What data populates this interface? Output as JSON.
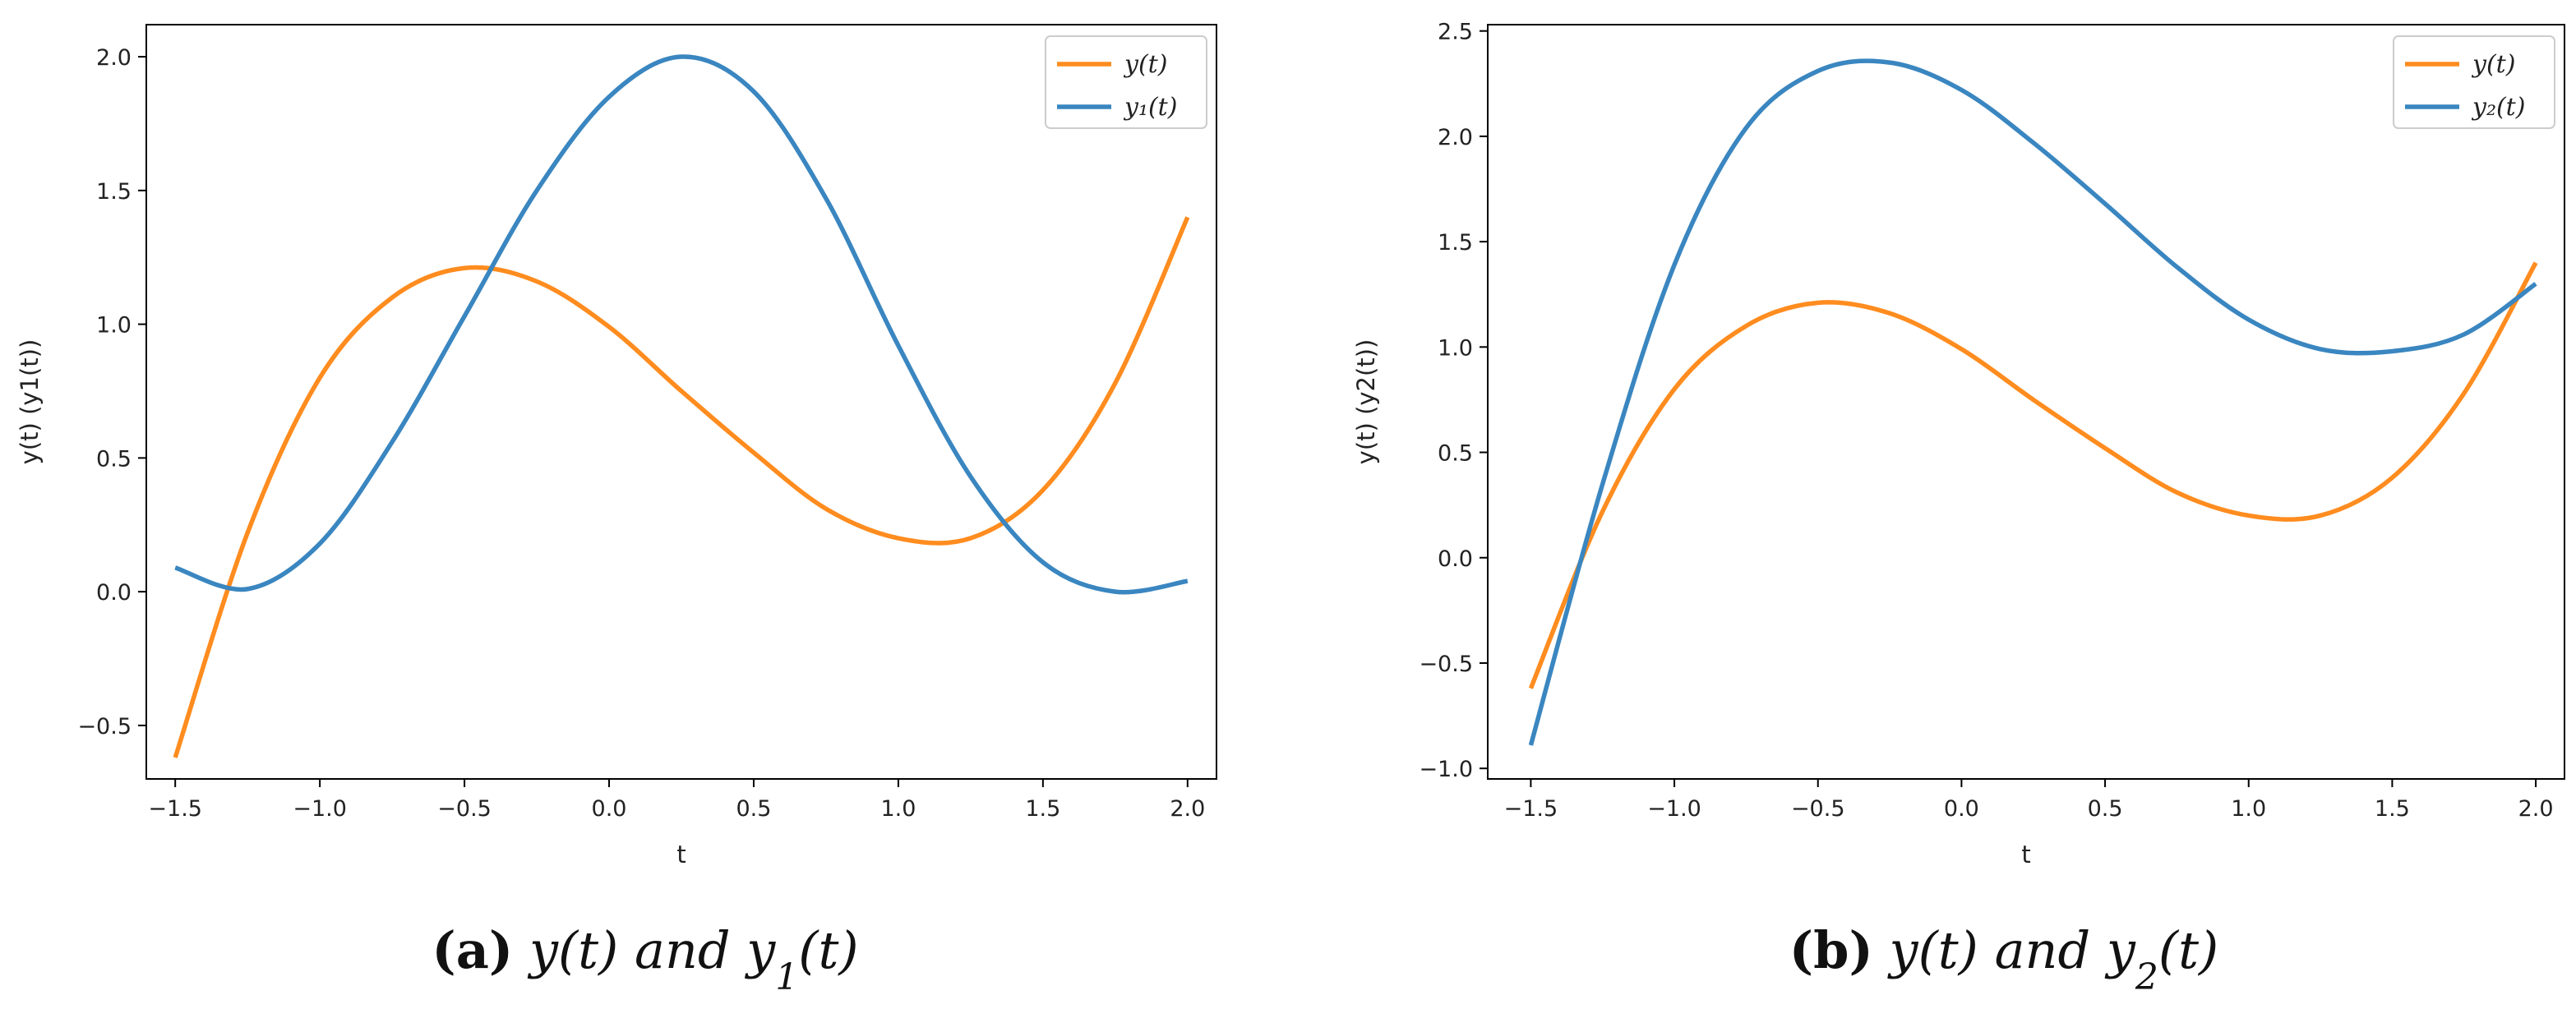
{
  "chart_data": [
    {
      "type": "line",
      "panel": "a",
      "xlabel": "t",
      "ylabel": "y(t) (y1(t))",
      "xlim": [
        -1.6,
        2.1
      ],
      "ylim": [
        -0.7,
        2.12
      ],
      "xticks": [
        -1.5,
        -1.0,
        -0.5,
        0.0,
        0.5,
        1.0,
        1.5,
        2.0
      ],
      "xtick_labels": [
        "−1.5",
        "−1.0",
        "−0.5",
        "0.0",
        "0.5",
        "1.0",
        "1.5",
        "2.0"
      ],
      "yticks": [
        -0.5,
        0.0,
        0.5,
        1.0,
        1.5,
        2.0
      ],
      "ytick_labels": [
        "−0.5",
        "0.0",
        "0.5",
        "1.0",
        "1.5",
        "2.0"
      ],
      "legend_position": "top-right",
      "series": [
        {
          "name": "y(t)",
          "color": "#ff8c1f",
          "x": [
            -1.5,
            -1.25,
            -1.0,
            -0.75,
            -0.5,
            -0.25,
            0.0,
            0.25,
            0.5,
            0.75,
            1.0,
            1.25,
            1.5,
            1.75,
            2.0
          ],
          "values": [
            -0.62,
            0.22,
            0.8,
            1.1,
            1.21,
            1.16,
            0.99,
            0.75,
            0.52,
            0.31,
            0.2,
            0.2,
            0.38,
            0.78,
            1.4
          ]
        },
        {
          "name": "y1(t)",
          "color": "#3a86c0",
          "x": [
            -1.5,
            -1.25,
            -1.0,
            -0.75,
            -0.5,
            -0.25,
            0.0,
            0.25,
            0.5,
            0.75,
            1.0,
            1.25,
            1.5,
            1.75,
            2.0
          ],
          "values": [
            0.09,
            0.01,
            0.18,
            0.56,
            1.03,
            1.5,
            1.85,
            2.0,
            1.87,
            1.47,
            0.92,
            0.43,
            0.11,
            0.0,
            0.04
          ]
        }
      ],
      "legend": [
        {
          "label": "y(t)",
          "color": "#ff8c1f"
        },
        {
          "label": "y₁(t)",
          "color": "#3a86c0"
        }
      ],
      "caption": {
        "tag": "(a)",
        "text_pre": "y(t) and y",
        "subscript": "1",
        "text_post": "(t)"
      }
    },
    {
      "type": "line",
      "panel": "b",
      "xlabel": "t",
      "ylabel": "y(t) (y2(t))",
      "xlim": [
        -1.65,
        2.1
      ],
      "ylim": [
        -1.05,
        2.53
      ],
      "xticks": [
        -1.5,
        -1.0,
        -0.5,
        0.0,
        0.5,
        1.0,
        1.5,
        2.0
      ],
      "xtick_labels": [
        "−1.5",
        "−1.0",
        "−0.5",
        "0.0",
        "0.5",
        "1.0",
        "1.5",
        "2.0"
      ],
      "yticks": [
        -1.0,
        -0.5,
        0.0,
        0.5,
        1.0,
        1.5,
        2.0,
        2.5
      ],
      "ytick_labels": [
        "−1.0",
        "−0.5",
        "0.0",
        "0.5",
        "1.0",
        "1.5",
        "2.0",
        "2.5"
      ],
      "legend_position": "top-right",
      "series": [
        {
          "name": "y(t)",
          "color": "#ff8c1f",
          "x": [
            -1.5,
            -1.25,
            -1.0,
            -0.75,
            -0.5,
            -0.25,
            0.0,
            0.25,
            0.5,
            0.75,
            1.0,
            1.25,
            1.5,
            1.75,
            2.0
          ],
          "values": [
            -0.62,
            0.22,
            0.8,
            1.1,
            1.21,
            1.16,
            0.99,
            0.75,
            0.52,
            0.31,
            0.2,
            0.2,
            0.38,
            0.78,
            1.4
          ]
        },
        {
          "name": "y2(t)",
          "color": "#3a86c0",
          "x": [
            -1.5,
            -1.25,
            -1.0,
            -0.75,
            -0.5,
            -0.25,
            0.0,
            0.25,
            0.5,
            0.75,
            1.0,
            1.25,
            1.5,
            1.75,
            2.0
          ],
          "values": [
            -0.89,
            0.35,
            1.39,
            2.04,
            2.31,
            2.35,
            2.22,
            1.97,
            1.68,
            1.38,
            1.13,
            0.99,
            0.98,
            1.06,
            1.3
          ]
        }
      ],
      "legend": [
        {
          "label": "y(t)",
          "color": "#ff8c1f"
        },
        {
          "label": "y₂(t)",
          "color": "#3a86c0"
        }
      ],
      "caption": {
        "tag": "(b)",
        "text_pre": "y(t) and y",
        "subscript": "2",
        "text_post": "(t)"
      }
    }
  ]
}
